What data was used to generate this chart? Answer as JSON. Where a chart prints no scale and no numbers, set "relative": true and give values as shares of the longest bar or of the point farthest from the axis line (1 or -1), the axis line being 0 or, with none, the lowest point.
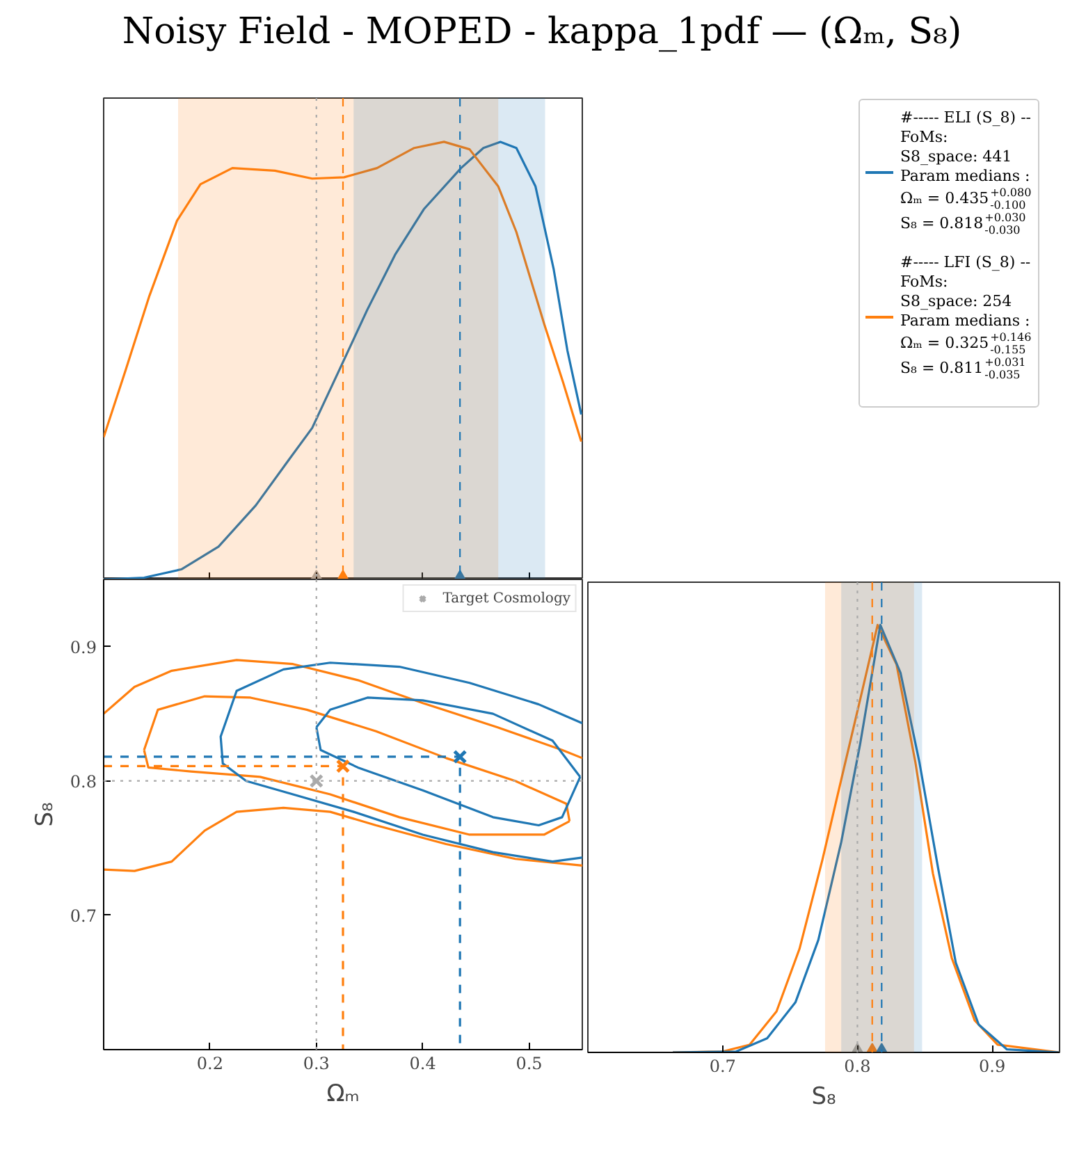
{
  "chart_data": [
    {
      "type": "line",
      "title": "Noisy Field - MOPED - kappa_1pdf — (Ωₘ, S₈)",
      "relative": true,
      "xlim": [
        0.1,
        0.55
      ],
      "xticks": [
        0.2,
        0.3,
        0.4,
        0.5
      ],
      "tick_labels": false,
      "grid": false,
      "line_style": "solid",
      "series": [
        {
          "color": "#1f77b4",
          "x": [
            0.1,
            0.138,
            0.173,
            0.208,
            0.243,
            0.274,
            0.296,
            0.322,
            0.348,
            0.374,
            0.401,
            0.436,
            0.457,
            0.473,
            0.488,
            0.506,
            0.523,
            0.536,
            0.549
          ],
          "values": [
            0,
            0.004,
            0.023,
            0.075,
            0.169,
            0.273,
            0.346,
            0.481,
            0.617,
            0.742,
            0.846,
            0.94,
            0.986,
            1,
            0.986,
            0.898,
            0.71,
            0.523,
            0.377
          ]
        },
        {
          "color": "#ff7f0e",
          "x": [
            0.1,
            0.121,
            0.143,
            0.169,
            0.191,
            0.221,
            0.261,
            0.296,
            0.326,
            0.357,
            0.392,
            0.42,
            0.444,
            0.471,
            0.488,
            0.514,
            0.532,
            0.549
          ],
          "values": [
            0.325,
            0.481,
            0.648,
            0.82,
            0.903,
            0.94,
            0.934,
            0.916,
            0.919,
            0.94,
            0.986,
            1,
            0.983,
            0.898,
            0.794,
            0.585,
            0.45,
            0.315
          ]
        },
        {
          "type": "scatter",
          "marker": "triangle",
          "color": "#aaaaaa",
          "x": [
            0.3
          ],
          "values": [
            0
          ]
        },
        {
          "type": "scatter",
          "marker": "triangle",
          "color": "#ff7f0e",
          "x": [
            0.325
          ],
          "values": [
            0
          ]
        },
        {
          "type": "scatter",
          "marker": "triangle",
          "color": "#1f77b4",
          "x": [
            0.435
          ],
          "values": [
            0
          ]
        }
      ],
      "bands": [
        {
          "axis": "x",
          "from": 0.17,
          "to": 0.471,
          "color": "#ff7f0e"
        },
        {
          "axis": "x",
          "from": 0.335,
          "to": 0.515,
          "color": "#1f77b4"
        }
      ],
      "ref_lines": [
        {
          "axis": "x",
          "value": 0.3,
          "color": "#aaaaaa",
          "line_style": "dotted"
        },
        {
          "axis": "x",
          "value": 0.325,
          "color": "#ff7f0e",
          "line_style": "dashed"
        },
        {
          "axis": "x",
          "value": 0.435,
          "color": "#1f77b4",
          "line_style": "dashed"
        }
      ]
    },
    {
      "type": "line",
      "xlabel": "Ωₘ",
      "ylabel": "S₈",
      "xlim": [
        0.1,
        0.55
      ],
      "ylim": [
        0.6,
        0.95
      ],
      "xticks": [
        0.2,
        0.3,
        0.4,
        0.5
      ],
      "yticks": [
        0.7,
        0.8,
        0.9
      ],
      "grid": false,
      "legend": "top right",
      "line_style": "solid",
      "series": [
        {
          "color": "#ff7f0e",
          "x": [
            0.1,
            0.129,
            0.164,
            0.225,
            0.278,
            0.339,
            0.4,
            0.47,
            0.531,
            0.55
          ],
          "values": [
            0.85,
            0.87,
            0.882,
            0.89,
            0.887,
            0.875,
            0.858,
            0.84,
            0.823,
            0.817
          ]
        },
        {
          "color": "#ff7f0e",
          "x": [
            0.55,
            0.487,
            0.422,
            0.356,
            0.313,
            0.269,
            0.225,
            0.195,
            0.164,
            0.129,
            0.1
          ],
          "values": [
            0.737,
            0.742,
            0.753,
            0.767,
            0.777,
            0.78,
            0.777,
            0.763,
            0.74,
            0.733,
            0.734
          ]
        },
        {
          "color": "#ff7f0e",
          "x": [
            0.138,
            0.151,
            0.195,
            0.238,
            0.291,
            0.356,
            0.422,
            0.487,
            0.535,
            0.538
          ],
          "values": [
            0.823,
            0.853,
            0.863,
            0.862,
            0.853,
            0.837,
            0.817,
            0.8,
            0.783,
            0.77
          ]
        },
        {
          "color": "#ff7f0e",
          "x": [
            0.538,
            0.514,
            0.444,
            0.378,
            0.313,
            0.247,
            0.182,
            0.142,
            0.138
          ],
          "values": [
            0.77,
            0.76,
            0.76,
            0.773,
            0.79,
            0.803,
            0.807,
            0.81,
            0.823
          ]
        },
        {
          "color": "#1f77b4",
          "x": [
            0.55,
            0.509,
            0.444,
            0.378,
            0.313,
            0.269,
            0.225,
            0.21,
            0.212,
            0.234,
            0.278,
            0.335,
            0.4,
            0.466,
            0.522,
            0.55
          ],
          "values": [
            0.843,
            0.857,
            0.873,
            0.885,
            0.888,
            0.883,
            0.867,
            0.833,
            0.813,
            0.8,
            0.79,
            0.777,
            0.76,
            0.747,
            0.74,
            0.743
          ]
        },
        {
          "color": "#1f77b4",
          "x": [
            0.3,
            0.313,
            0.348,
            0.4,
            0.466,
            0.522,
            0.548
          ],
          "values": [
            0.84,
            0.853,
            0.862,
            0.86,
            0.85,
            0.83,
            0.803
          ]
        },
        {
          "color": "#1f77b4",
          "x": [
            0.548,
            0.531,
            0.509,
            0.466,
            0.4,
            0.339,
            0.304,
            0.3
          ],
          "values": [
            0.803,
            0.773,
            0.767,
            0.773,
            0.793,
            0.81,
            0.823,
            0.84
          ]
        },
        {
          "color": "#1f77b4",
          "line_style": "dashed",
          "x": [
            0.1,
            0.435,
            0.435
          ],
          "values": [
            0.818,
            0.818,
            0.6
          ]
        },
        {
          "color": "#ff7f0e",
          "line_style": "dashed",
          "x": [
            0.1,
            0.325,
            0.325
          ],
          "values": [
            0.811,
            0.811,
            0.6
          ]
        },
        {
          "type": "scatter",
          "marker": "cross",
          "name": "Target Cosmology",
          "color": "#aaaaaa",
          "x": [
            0.3
          ],
          "values": [
            0.8
          ]
        },
        {
          "type": "scatter",
          "marker": "cross",
          "color": "#ff7f0e",
          "x": [
            0.325
          ],
          "values": [
            0.811
          ]
        },
        {
          "type": "scatter",
          "marker": "cross",
          "color": "#1f77b4",
          "x": [
            0.435
          ],
          "values": [
            0.818
          ]
        }
      ],
      "ref_lines": [
        {
          "axis": "x",
          "value": 0.3,
          "color": "#aaaaaa",
          "line_style": "dotted"
        },
        {
          "axis": "y",
          "value": 0.8,
          "color": "#aaaaaa",
          "line_style": "dotted"
        }
      ]
    },
    {
      "type": "line",
      "xlabel": "S₈",
      "relative": true,
      "xlim": [
        0.6,
        0.95
      ],
      "xticks": [
        0.7,
        0.8,
        0.9
      ],
      "tick_labels": "x",
      "grid": false,
      "line_style": "solid",
      "series": [
        {
          "color": "#ff7f0e",
          "x": [
            0.663,
            0.7,
            0.72,
            0.74,
            0.757,
            0.774,
            0.788,
            0.802,
            0.815,
            0.829,
            0.843,
            0.856,
            0.87,
            0.887,
            0.904,
            0.95
          ],
          "values": [
            0,
            0.002,
            0.018,
            0.096,
            0.242,
            0.45,
            0.638,
            0.825,
            1,
            0.908,
            0.679,
            0.419,
            0.221,
            0.075,
            0.018,
            0
          ]
        },
        {
          "color": "#1f77b4",
          "x": [
            0.663,
            0.71,
            0.733,
            0.754,
            0.771,
            0.788,
            0.802,
            0.817,
            0.832,
            0.846,
            0.86,
            0.873,
            0.89,
            0.911,
            0.95
          ],
          "values": [
            0,
            0.002,
            0.033,
            0.117,
            0.263,
            0.492,
            0.721,
            1,
            0.888,
            0.679,
            0.429,
            0.21,
            0.065,
            0.007,
            0
          ]
        },
        {
          "type": "scatter",
          "marker": "triangle",
          "color": "#aaaaaa",
          "x": [
            0.8
          ],
          "values": [
            0
          ]
        },
        {
          "type": "scatter",
          "marker": "triangle",
          "color": "#ff7f0e",
          "x": [
            0.811
          ],
          "values": [
            0
          ]
        },
        {
          "type": "scatter",
          "marker": "triangle",
          "color": "#1f77b4",
          "x": [
            0.818
          ],
          "values": [
            0
          ]
        }
      ],
      "bands": [
        {
          "axis": "x",
          "from": 0.776,
          "to": 0.842,
          "color": "#ff7f0e"
        },
        {
          "axis": "x",
          "from": 0.788,
          "to": 0.848,
          "color": "#1f77b4"
        }
      ],
      "ref_lines": [
        {
          "axis": "x",
          "value": 0.8,
          "color": "#aaaaaa",
          "line_style": "dotted"
        },
        {
          "axis": "x",
          "value": 0.811,
          "color": "#ff7f0e",
          "line_style": "dashed"
        },
        {
          "axis": "x",
          "value": 0.818,
          "color": "#1f77b4",
          "line_style": "dashed"
        }
      ]
    },
    {
      "type": "other",
      "colors": [
        "#1f77b4",
        "#ff7f0e"
      ],
      "annotations": [
        "#----- ELI (S_8) --\nFoMs:\nS8_space: 441\nParam medians :\nΩₘ = 0.435$^{+0.080}$$_{-0.100}$\nS₈ = 0.818$^{+0.030}$$_{-0.030}$",
        "#----- LFI (S_8) --\nFoMs:\nS8_space: 254\nParam medians :\nΩₘ = 0.325$^{+0.146}$$_{-0.155}$\nS₈ = 0.811$^{+0.031}$$_{-0.035}$"
      ]
    }
  ]
}
